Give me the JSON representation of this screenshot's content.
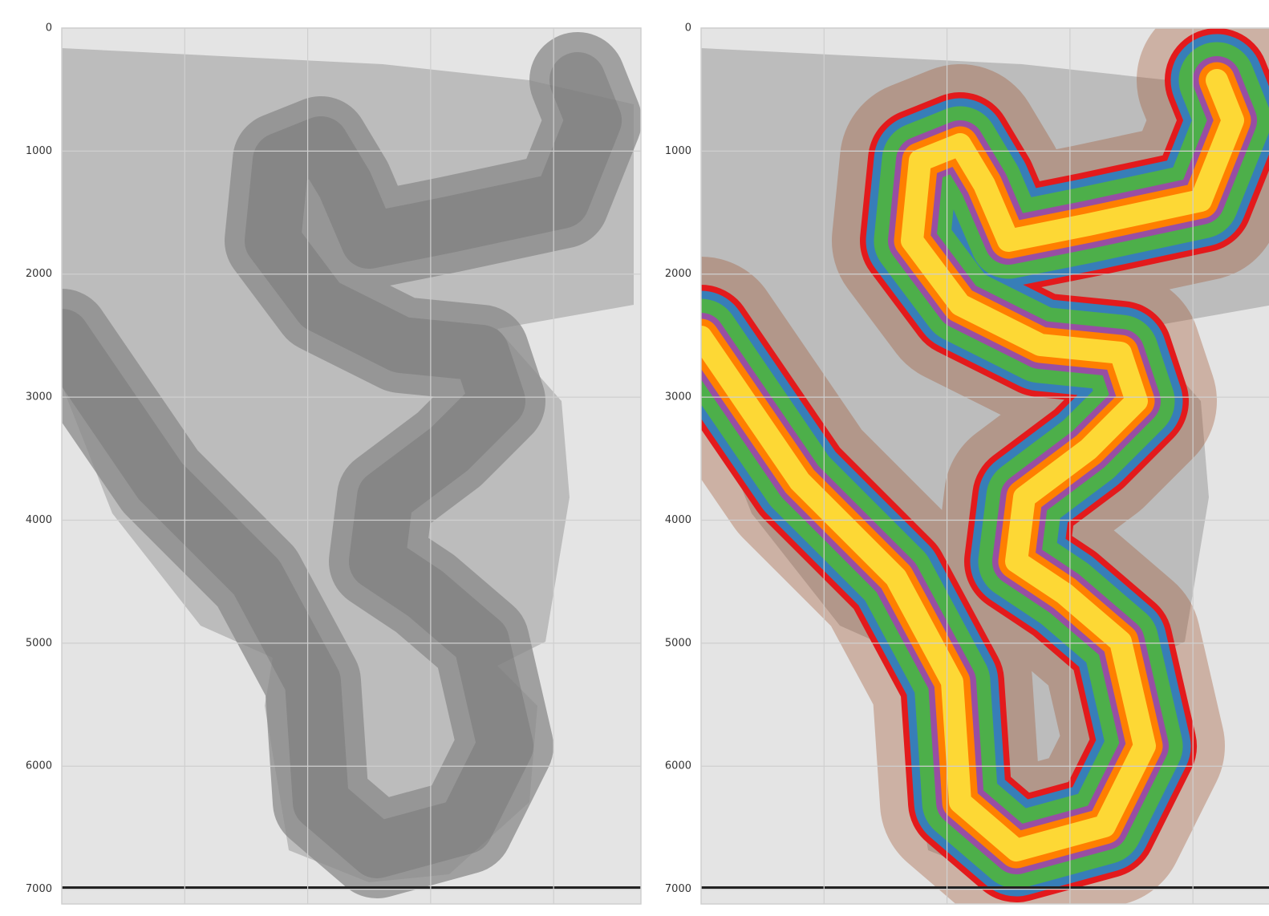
{
  "chart_data": [
    {
      "type": "image",
      "xlim": [
        0,
        4710
      ],
      "ylim": [
        7120,
        0
      ],
      "xticks": [
        1000,
        2000,
        3000,
        4000
      ],
      "yticks": [
        0,
        1000,
        2000,
        3000,
        4000,
        5000,
        6000,
        7000
      ],
      "grid": true
    },
    {
      "type": "image",
      "xlim": [
        0,
        4710
      ],
      "ylim": [
        7120,
        0
      ],
      "xticks": [
        1000,
        2000,
        3000,
        4000
      ],
      "yticks": [
        0,
        1000,
        2000,
        3000,
        4000,
        5000,
        6000,
        7000
      ],
      "grid": true
    }
  ]
}
